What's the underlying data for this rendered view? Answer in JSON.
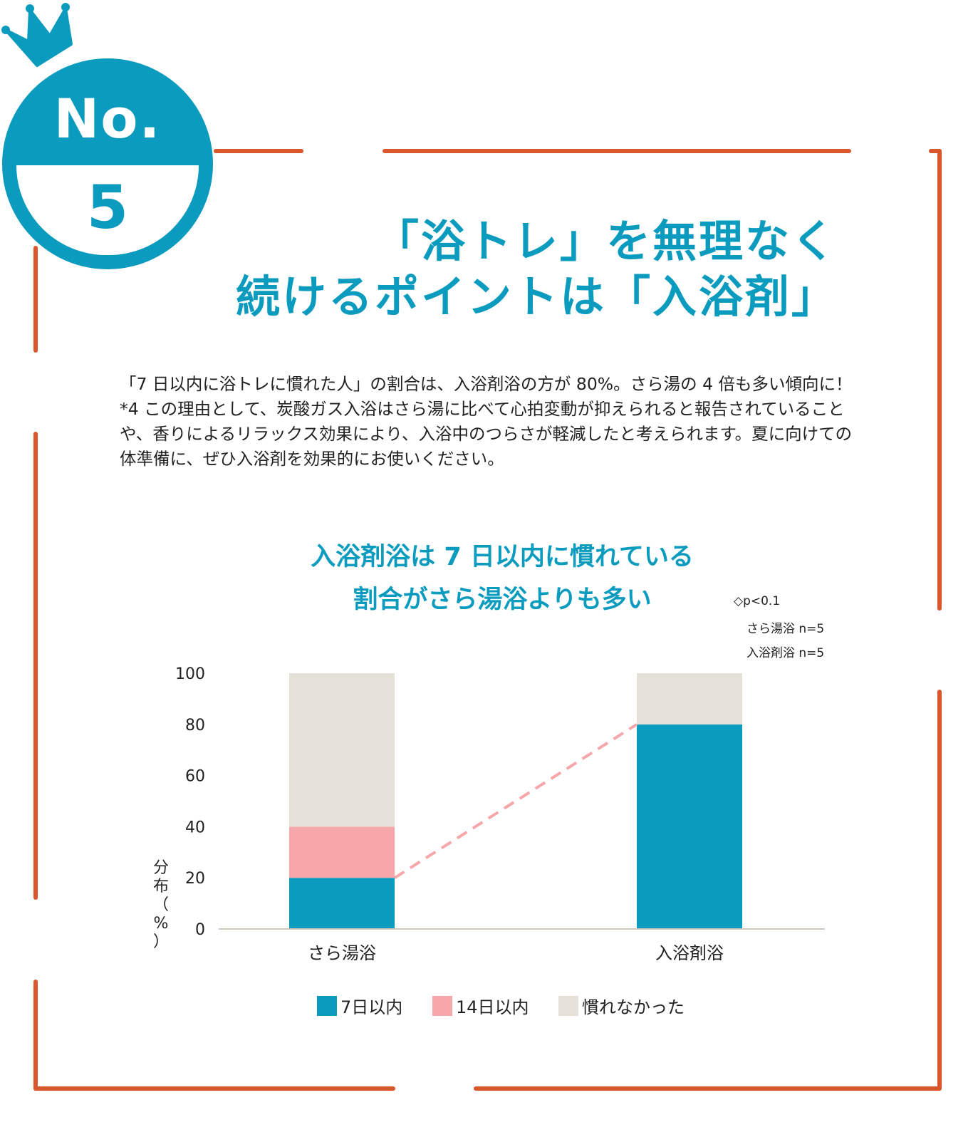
{
  "badge": {
    "no_label": "No.",
    "number": "5",
    "crown_icon": "crown-icon"
  },
  "headline": {
    "line1": "「浴トレ」を無理なく",
    "line2": "続けるポイントは「入浴剤」"
  },
  "body_text": "「7 日以内に浴トレに慣れた人」の割合は、入浴剤浴の方が 80%。さら湯の 4 倍も多い傾向に！*4 この理由として、炭酸ガス入浴はさら湯に比べて心拍変動が抑えられると報告されていることや、香りによるリラックス効果により、入浴中のつらさが軽減したと考えられます。夏に向けての体準備に、ぜひ入浴剤を効果的にお使いください。",
  "chart_data": {
    "type": "bar",
    "stacked": true,
    "title_line1": "入浴剤浴は 7 日以内に慣れている",
    "title_line2": "割合がさら湯浴よりも多い",
    "ylabel": "分布（%）",
    "ylim": [
      0,
      100
    ],
    "yticks": [
      "0",
      "20",
      "40",
      "60",
      "80",
      "100"
    ],
    "categories": [
      "さら湯浴",
      "入浴剤浴"
    ],
    "series": [
      {
        "name": "7日以内",
        "values": [
          20,
          80
        ],
        "color": "#0a9bbf"
      },
      {
        "name": "14日以内",
        "values": [
          20,
          0
        ],
        "color": "#f7a7aa"
      },
      {
        "name": "慣れなかった",
        "values": [
          60,
          20
        ],
        "color": "#e6e1d8"
      }
    ],
    "annotation": {
      "significance": "◇p<0.1",
      "n_plain": "さら湯浴  n=5",
      "n_bath": "入浴剤浴 n=5",
      "connector_color": "#f7a7aa"
    },
    "legend_position": "bottom"
  },
  "colors": {
    "accent": "#0a9bbf",
    "frame": "#d9572a"
  }
}
